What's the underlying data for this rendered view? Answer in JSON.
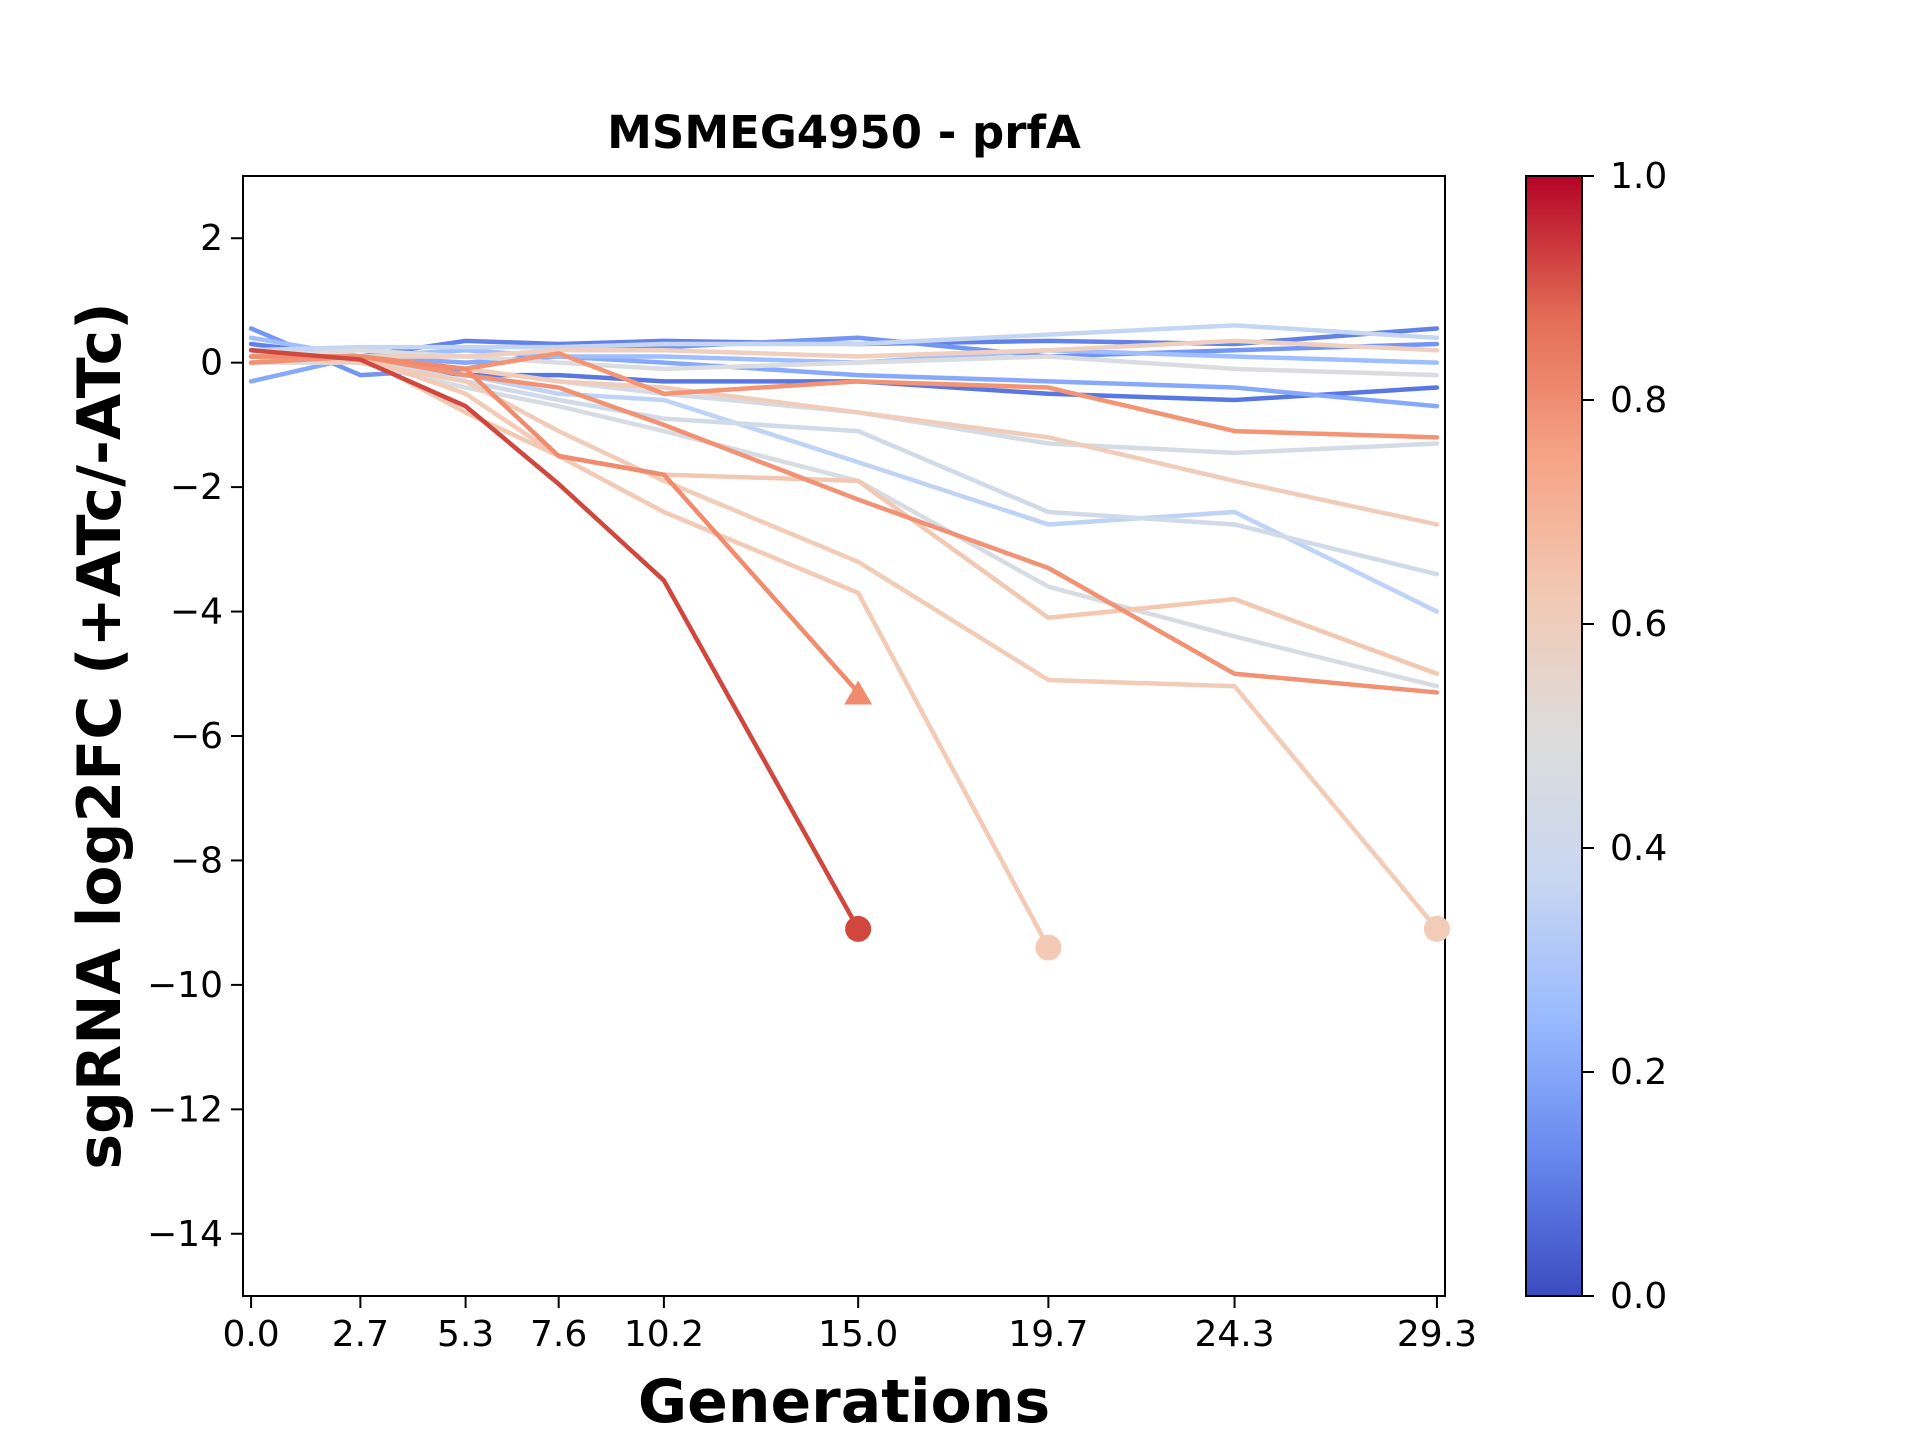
{
  "chart_data": {
    "type": "line",
    "title": "MSMEG4950 - prfA",
    "xlabel": "Generations",
    "ylabel": "sgRNA log2FC (+ATc/-ATc)",
    "x_ticks": [
      0.0,
      2.7,
      5.3,
      7.6,
      10.2,
      15.0,
      19.7,
      24.3,
      29.3
    ],
    "x_tick_labels": [
      "0.0",
      "2.7",
      "5.3",
      "7.6",
      "10.2",
      "15.0",
      "19.7",
      "24.3",
      "29.3"
    ],
    "xlim": [
      -0.2,
      29.5
    ],
    "ylim": [
      -15,
      3
    ],
    "y_ticks": [
      2,
      0,
      -2,
      -4,
      -6,
      -8,
      -10,
      -12,
      -14
    ],
    "y_tick_labels": [
      "2",
      "0",
      "−2",
      "−4",
      "−6",
      "−8",
      "−10",
      "−12",
      "−14"
    ],
    "grid": false,
    "legend": "none",
    "colorbar": {
      "min": 0.0,
      "max": 1.0,
      "ticks": [
        1.0,
        0.8,
        0.6,
        0.4,
        0.2,
        0.0
      ],
      "tick_labels": [
        "1.0",
        "0.8",
        "0.6",
        "0.4",
        "0.2",
        "0.0"
      ],
      "colormap": "coolwarm",
      "stops": [
        "#3b4cc0",
        "#6788ee",
        "#9abbff",
        "#c9d7f0",
        "#dddcdc",
        "#f2c9b4",
        "#f6a385",
        "#e36c55",
        "#b40426"
      ]
    },
    "series": [
      {
        "color": "#6282ea",
        "x": [
          0.0,
          2.7,
          5.3,
          7.6,
          10.2,
          15.0,
          19.7,
          24.3,
          29.3
        ],
        "y": [
          0.3,
          0.1,
          0.35,
          0.3,
          0.35,
          0.3,
          0.35,
          0.3,
          0.55
        ]
      },
      {
        "color": "#5977e3",
        "x": [
          0.0,
          2.7,
          5.3,
          7.6,
          10.2,
          15.0,
          19.7,
          24.3,
          29.3
        ],
        "y": [
          0.1,
          0.0,
          -0.2,
          -0.2,
          -0.3,
          -0.3,
          -0.5,
          -0.6,
          -0.4
        ]
      },
      {
        "color": "#7396f5",
        "x": [
          0.0,
          2.7,
          5.3,
          7.6,
          10.2,
          15.0,
          19.7,
          24.3,
          29.3
        ],
        "y": [
          0.55,
          -0.2,
          -0.1,
          0.2,
          0.25,
          0.4,
          0.1,
          0.2,
          0.3
        ]
      },
      {
        "color": "#86a9fc",
        "x": [
          0.0,
          2.7,
          5.3,
          7.6,
          10.2,
          15.0,
          19.7,
          24.3,
          29.3
        ],
        "y": [
          -0.3,
          0.1,
          0.0,
          0.1,
          0.0,
          -0.2,
          -0.3,
          -0.4,
          -0.7
        ]
      },
      {
        "color": "#9ebeff",
        "x": [
          0.0,
          2.7,
          5.3,
          7.6,
          10.2,
          15.0,
          19.7,
          24.3,
          29.3
        ],
        "y": [
          0.4,
          0.1,
          0.2,
          0.1,
          0.1,
          0.0,
          0.2,
          0.1,
          0.0
        ]
      },
      {
        "color": "#c5d6f2",
        "x": [
          0.0,
          2.7,
          5.3,
          7.6,
          10.2,
          15.0,
          19.7,
          24.3,
          29.3
        ],
        "y": [
          0.2,
          0.25,
          0.25,
          0.25,
          0.3,
          0.3,
          0.45,
          0.6,
          0.4
        ]
      },
      {
        "color": "#bfd3f6",
        "x": [
          0.0,
          2.7,
          5.3,
          7.6,
          10.2,
          15.0,
          19.7,
          24.3,
          29.3
        ],
        "y": [
          0.1,
          0.1,
          -0.2,
          -0.5,
          -0.6,
          -1.6,
          -2.6,
          -2.4,
          -4.0
        ]
      },
      {
        "color": "#d1dae9",
        "x": [
          0.0,
          2.7,
          5.3,
          7.6,
          10.2,
          15.0,
          19.7,
          24.3,
          29.3
        ],
        "y": [
          0.0,
          0.1,
          -0.3,
          -0.6,
          -0.9,
          -1.1,
          -2.4,
          -2.6,
          -3.4
        ]
      },
      {
        "color": "#d5dbe5",
        "x": [
          0.0,
          2.7,
          5.3,
          7.6,
          10.2,
          15.0,
          19.7,
          24.3,
          29.3
        ],
        "y": [
          0.2,
          0.1,
          -0.1,
          -0.3,
          -0.5,
          -0.8,
          -1.3,
          -1.45,
          -1.3
        ]
      },
      {
        "color": "#d7dce3",
        "x": [
          0.0,
          2.7,
          5.3,
          7.6,
          10.2,
          15.0,
          19.7,
          24.3,
          29.3
        ],
        "y": [
          0.0,
          0.0,
          -0.4,
          -0.7,
          -1.1,
          -1.9,
          -3.6,
          -4.4,
          -5.2
        ]
      },
      {
        "color": "#dadce0",
        "x": [
          0.0,
          2.7,
          5.3,
          7.6,
          10.2,
          15.0,
          19.7,
          24.3,
          29.3
        ],
        "y": [
          0.1,
          0.2,
          0.1,
          0.0,
          -0.1,
          0.0,
          0.1,
          -0.1,
          -0.2
        ]
      },
      {
        "color": "#f0cdbb",
        "x": [
          0.0,
          2.7,
          5.3,
          7.6,
          10.2,
          15.0,
          19.7,
          24.3,
          29.3
        ],
        "y": [
          0.1,
          0.1,
          -0.1,
          -0.3,
          -0.4,
          -0.8,
          -1.2,
          -1.9,
          -2.6
        ]
      },
      {
        "color": "#efcfbf",
        "x": [
          0.0,
          2.7,
          5.3,
          7.6,
          10.2,
          15.0,
          19.7,
          24.3,
          29.3
        ],
        "y": [
          0.0,
          0.1,
          0.1,
          0.2,
          0.2,
          0.1,
          0.2,
          0.35,
          0.2
        ]
      },
      {
        "color": "#f1ccb8",
        "x": [
          0.0,
          2.7,
          5.3,
          7.6,
          10.2,
          15.0,
          19.7,
          24.3,
          29.3
        ],
        "y": [
          0.1,
          0.0,
          -0.3,
          -1.1,
          -1.9,
          -3.2,
          -5.1,
          -5.2,
          -9.1
        ],
        "end_marker": "circle"
      },
      {
        "color": "#f2cab5",
        "x": [
          0.0,
          2.7,
          5.3,
          7.6,
          10.2,
          15.0,
          19.7
        ],
        "y": [
          0.0,
          0.1,
          -0.5,
          -1.5,
          -2.4,
          -3.7,
          -9.4
        ],
        "end_marker": "circle"
      },
      {
        "color": "#f2c8b2",
        "x": [
          0.0,
          2.7,
          5.3,
          7.6,
          10.2,
          15.0,
          19.7,
          24.3,
          29.3
        ],
        "y": [
          0.0,
          0.1,
          -0.8,
          -1.5,
          -1.8,
          -1.9,
          -4.1,
          -3.8,
          -5.0
        ]
      },
      {
        "color": "#f29274",
        "x": [
          0.0,
          2.7,
          5.3,
          7.6,
          10.2,
          15.0,
          19.7,
          24.3,
          29.3
        ],
        "y": [
          0.0,
          0.1,
          -0.2,
          -0.4,
          -1.0,
          -2.2,
          -3.3,
          -5.0,
          -5.3
        ]
      },
      {
        "color": "#f39475",
        "x": [
          0.0,
          2.7,
          5.3,
          7.6,
          10.2,
          15.0,
          19.7,
          24.3,
          29.3
        ],
        "y": [
          0.1,
          0.1,
          -0.1,
          0.15,
          -0.5,
          -0.3,
          -0.4,
          -1.1,
          -1.2
        ]
      },
      {
        "color": "#f08b6e",
        "x": [
          0.0,
          2.7,
          5.3,
          7.6,
          10.2,
          15.0
        ],
        "y": [
          0.1,
          0.1,
          -0.1,
          -1.5,
          -1.8,
          -5.3
        ],
        "end_marker": "triangle"
      },
      {
        "color": "#d0473d",
        "x": [
          0.0,
          2.7,
          5.3,
          7.6,
          10.2,
          15.0
        ],
        "y": [
          0.2,
          0.05,
          -0.7,
          -1.95,
          -3.5,
          -9.1
        ],
        "end_marker": "circle"
      }
    ]
  }
}
